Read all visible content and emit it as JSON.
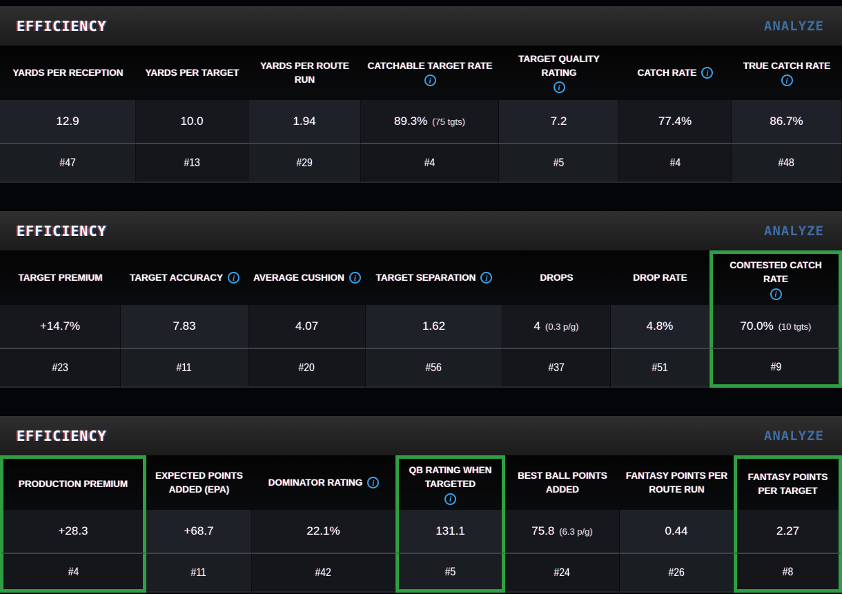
{
  "colors": {
    "highlight_green": "#2ea043",
    "analyze_link_blue": "#3e6da6",
    "info_icon_blue": "#3ba0ea"
  },
  "sections": [
    {
      "title": "EFFICIENCY",
      "action": "ANALYZE",
      "columns": [
        {
          "label": "YARDS PER RECEPTION",
          "info": false,
          "value": "12.9",
          "sub": "",
          "rank": "#47",
          "highlight": false
        },
        {
          "label": "YARDS PER TARGET",
          "info": false,
          "value": "10.0",
          "sub": "",
          "rank": "#13",
          "highlight": false
        },
        {
          "label": "YARDS PER ROUTE RUN",
          "info": false,
          "value": "1.94",
          "sub": "",
          "rank": "#29",
          "highlight": false
        },
        {
          "label": "CATCHABLE TARGET RATE",
          "info": true,
          "value": "89.3%",
          "sub": "(75 tgts)",
          "rank": "#4",
          "highlight": false
        },
        {
          "label": "TARGET QUALITY RATING",
          "info": true,
          "value": "7.2",
          "sub": "",
          "rank": "#5",
          "highlight": false
        },
        {
          "label": "CATCH RATE",
          "info": true,
          "value": "77.4%",
          "sub": "",
          "rank": "#4",
          "highlight": false
        },
        {
          "label": "TRUE CATCH RATE",
          "info": true,
          "value": "86.7%",
          "sub": "",
          "rank": "#48",
          "highlight": false
        }
      ]
    },
    {
      "title": "EFFICIENCY",
      "action": "ANALYZE",
      "columns": [
        {
          "label": "TARGET PREMIUM",
          "info": false,
          "value": "+14.7%",
          "sub": "",
          "rank": "#23",
          "highlight": false
        },
        {
          "label": "TARGET ACCURACY",
          "info": true,
          "value": "7.83",
          "sub": "",
          "rank": "#11",
          "highlight": false
        },
        {
          "label": "AVERAGE CUSHION",
          "info": true,
          "value": "4.07",
          "sub": "",
          "rank": "#20",
          "highlight": false
        },
        {
          "label": "TARGET SEPARATION",
          "info": true,
          "value": "1.62",
          "sub": "",
          "rank": "#56",
          "highlight": false
        },
        {
          "label": "DROPS",
          "info": false,
          "value": "4",
          "sub": "(0.3 p/g)",
          "rank": "#37",
          "highlight": false
        },
        {
          "label": "DROP RATE",
          "info": false,
          "value": "4.8%",
          "sub": "",
          "rank": "#51",
          "highlight": false
        },
        {
          "label": "CONTESTED CATCH RATE",
          "info": true,
          "value": "70.0%",
          "sub": "(10 tgts)",
          "rank": "#9",
          "highlight": true
        }
      ]
    },
    {
      "title": "EFFICIENCY",
      "action": "ANALYZE",
      "columns": [
        {
          "label": "PRODUCTION PREMIUM",
          "info": false,
          "value": "+28.3",
          "sub": "",
          "rank": "#4",
          "highlight": true
        },
        {
          "label": "EXPECTED POINTS ADDED (EPA)",
          "info": false,
          "value": "+68.7",
          "sub": "",
          "rank": "#11",
          "highlight": false
        },
        {
          "label": "DOMINATOR RATING",
          "info": true,
          "value": "22.1%",
          "sub": "",
          "rank": "#42",
          "highlight": false
        },
        {
          "label": "QB RATING WHEN TARGETED",
          "info": true,
          "value": "131.1",
          "sub": "",
          "rank": "#5",
          "highlight": true
        },
        {
          "label": "BEST BALL POINTS ADDED",
          "info": false,
          "value": "75.8",
          "sub": "(6.3 p/g)",
          "rank": "#24",
          "highlight": false
        },
        {
          "label": "FANTASY POINTS PER ROUTE RUN",
          "info": false,
          "value": "0.44",
          "sub": "",
          "rank": "#26",
          "highlight": false
        },
        {
          "label": "FANTASY POINTS PER TARGET",
          "info": false,
          "value": "2.27",
          "sub": "",
          "rank": "#8",
          "highlight": true
        }
      ]
    }
  ]
}
